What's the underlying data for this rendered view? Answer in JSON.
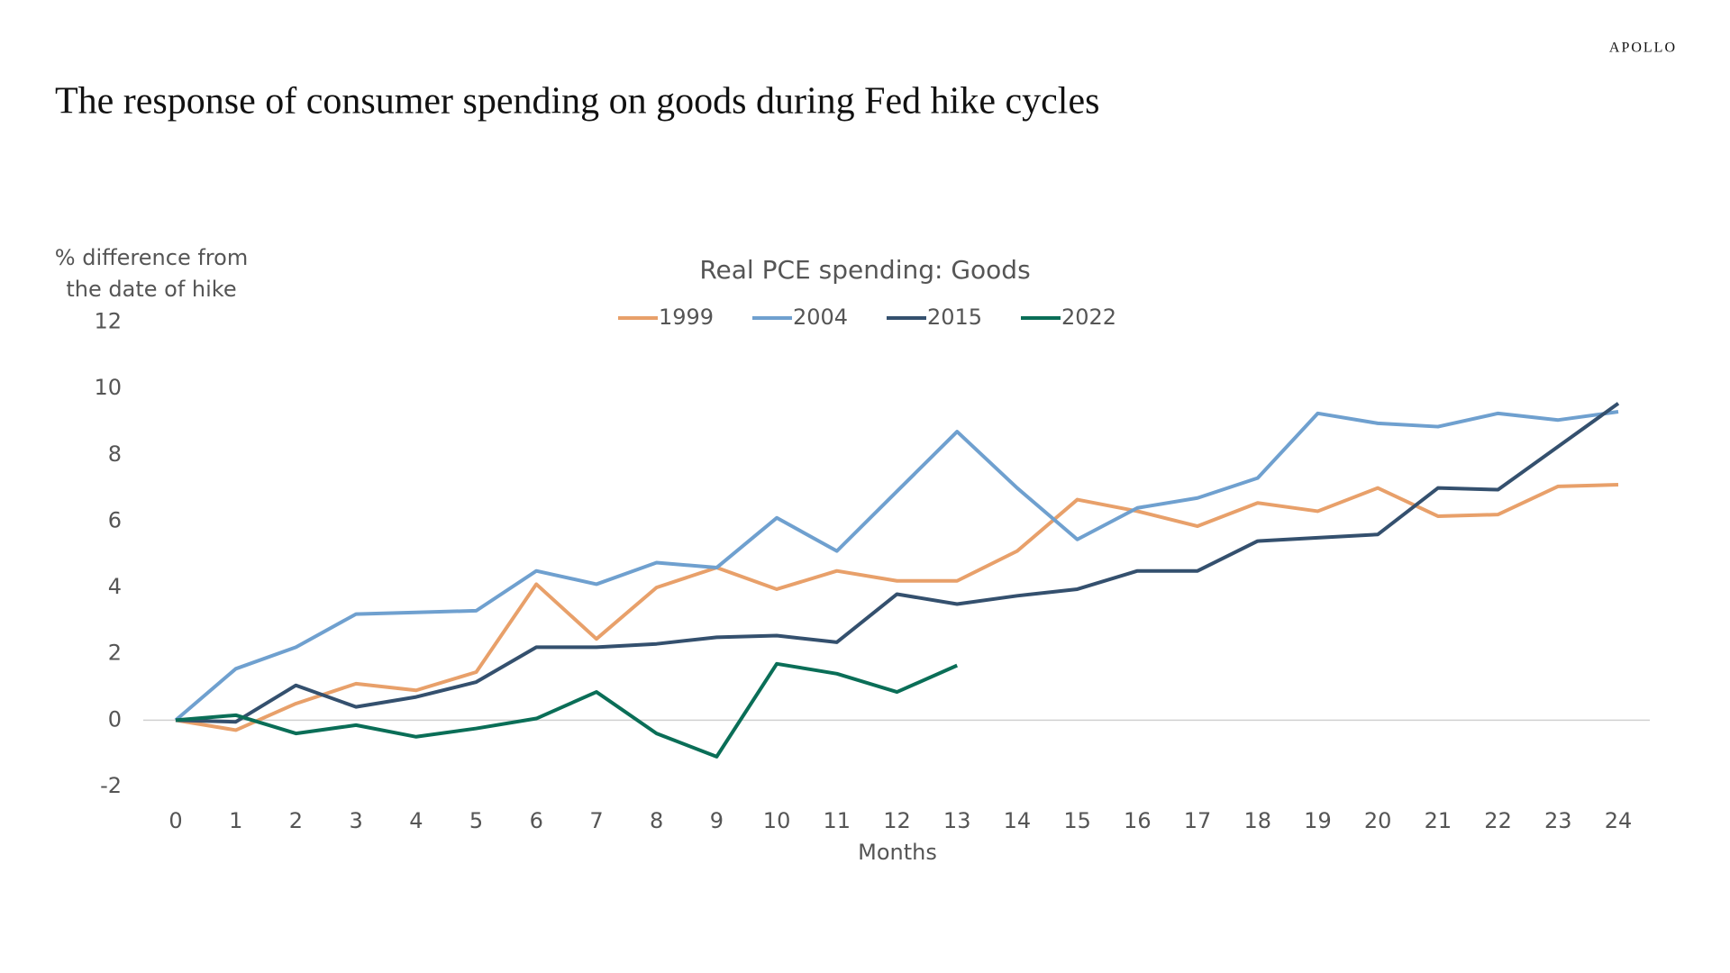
{
  "brand": "APOLLO",
  "title": "The response of consumer spending on goods during Fed hike cycles",
  "chart_data": {
    "type": "line",
    "title": "Real PCE spending: Goods",
    "ylabel": [
      "% difference from",
      "the date of hike"
    ],
    "xlabel": "Months",
    "x": [
      0,
      1,
      2,
      3,
      4,
      5,
      6,
      7,
      8,
      9,
      10,
      11,
      12,
      13,
      14,
      15,
      16,
      17,
      18,
      19,
      20,
      21,
      22,
      23,
      24
    ],
    "xlim": [
      0,
      24
    ],
    "xticks": [
      0,
      1,
      2,
      3,
      4,
      5,
      6,
      7,
      8,
      9,
      10,
      11,
      12,
      13,
      14,
      15,
      16,
      17,
      18,
      19,
      20,
      21,
      22,
      23,
      24
    ],
    "ylim": [
      -2,
      12
    ],
    "yticks": [
      -2,
      0,
      2,
      4,
      6,
      8,
      10,
      12
    ],
    "grid": false,
    "legend": "top",
    "series": [
      {
        "name": "1999",
        "color": "#e8a06a",
        "values": [
          0,
          -0.3,
          0.5,
          1.1,
          0.9,
          1.45,
          4.1,
          2.45,
          4.0,
          4.6,
          3.95,
          4.5,
          4.2,
          4.2,
          5.1,
          6.65,
          6.3,
          5.85,
          6.55,
          6.3,
          7.0,
          6.15,
          6.2,
          7.05,
          7.1
        ]
      },
      {
        "name": "2004",
        "color": "#6fa0cf",
        "values": [
          0,
          1.55,
          2.2,
          3.2,
          3.25,
          3.3,
          4.5,
          4.1,
          4.75,
          4.6,
          6.1,
          5.1,
          6.9,
          8.7,
          7.0,
          5.45,
          6.4,
          6.7,
          7.3,
          9.25,
          8.95,
          8.85,
          9.25,
          9.05,
          9.3
        ]
      },
      {
        "name": "2015",
        "color": "#34506e",
        "values": [
          0,
          -0.05,
          1.05,
          0.4,
          0.7,
          1.15,
          2.2,
          2.2,
          2.3,
          2.5,
          2.55,
          2.35,
          3.8,
          3.5,
          3.75,
          3.95,
          4.5,
          4.5,
          5.4,
          5.5,
          5.6,
          7.0,
          6.95,
          8.25,
          9.55
        ]
      },
      {
        "name": "2022",
        "color": "#0a6e57",
        "values": [
          0,
          0.15,
          -0.4,
          -0.15,
          -0.5,
          -0.25,
          0.05,
          0.85,
          -0.4,
          -1.1,
          1.7,
          1.4,
          0.85,
          1.65,
          null,
          null,
          null,
          null,
          null,
          null,
          null,
          null,
          null,
          null,
          null
        ]
      }
    ]
  }
}
